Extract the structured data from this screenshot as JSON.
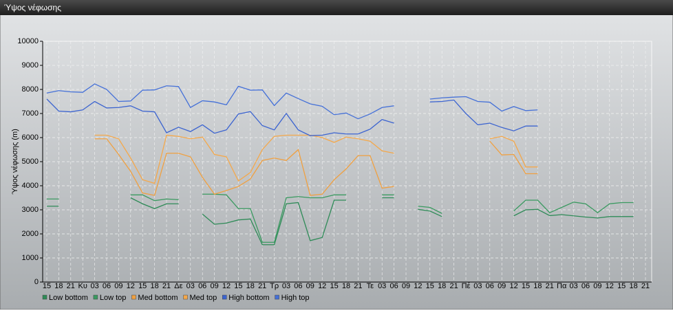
{
  "chart_data": {
    "type": "line",
    "title": "Ύψος νέφωσης",
    "ylabel": "Ύψος νέφωσης (m)",
    "categories": [
      "15",
      "18",
      "21",
      "Κυ",
      "03",
      "06",
      "09",
      "12",
      "15",
      "18",
      "21",
      "Δε",
      "03",
      "06",
      "09",
      "12",
      "15",
      "18",
      "21",
      "Τρ",
      "03",
      "06",
      "09",
      "12",
      "15",
      "18",
      "21",
      "Τε",
      "03",
      "06",
      "09",
      "12",
      "15",
      "18",
      "21",
      "Πέ",
      "03",
      "06",
      "09",
      "12",
      "15",
      "18",
      "21",
      "Πα",
      "03",
      "06",
      "09",
      "12",
      "15",
      "18",
      "21"
    ],
    "ylim": [
      0,
      10000
    ],
    "yticks": [
      0,
      1000,
      2000,
      3000,
      4000,
      5000,
      6000,
      7000,
      8000,
      9000,
      10000
    ],
    "grid": true,
    "series": [
      {
        "name": "Low bottom",
        "color": "#2e8b57",
        "values": [
          3150,
          3150,
          null,
          null,
          null,
          null,
          null,
          3500,
          3250,
          3050,
          3250,
          3250,
          null,
          2820,
          2400,
          2450,
          2580,
          2620,
          1550,
          1550,
          3250,
          3300,
          1720,
          1850,
          3400,
          3400,
          null,
          null,
          3500,
          3500,
          null,
          3020,
          2950,
          2720,
          null,
          null,
          null,
          null,
          null,
          2750,
          3000,
          3020,
          2760,
          2800,
          2750,
          2700,
          2660,
          2720,
          2720,
          2720,
          null
        ]
      },
      {
        "name": "Low top",
        "color": "#3a9a60",
        "values": [
          3450,
          3450,
          null,
          null,
          null,
          null,
          null,
          3620,
          3620,
          3380,
          3450,
          3420,
          null,
          3650,
          3650,
          3620,
          3050,
          3050,
          1650,
          1650,
          3500,
          3550,
          3500,
          3500,
          3620,
          3620,
          null,
          null,
          3620,
          3620,
          null,
          3150,
          3100,
          2850,
          null,
          null,
          null,
          null,
          null,
          2950,
          3400,
          3400,
          2880,
          3100,
          3320,
          3250,
          2880,
          3250,
          3300,
          3300,
          null
        ]
      },
      {
        "name": "Med bottom",
        "color": "#f0a040",
        "values": [
          null,
          null,
          null,
          null,
          5950,
          5950,
          5300,
          4600,
          3700,
          3600,
          5350,
          5350,
          5200,
          4350,
          3650,
          3800,
          3970,
          4280,
          5050,
          5150,
          5050,
          5500,
          3600,
          3650,
          4250,
          4700,
          5250,
          5250,
          3900,
          3970,
          null,
          null,
          null,
          null,
          null,
          null,
          null,
          5850,
          5280,
          5300,
          4500,
          4500,
          null,
          null,
          null,
          null,
          null,
          null,
          null,
          null,
          null
        ]
      },
      {
        "name": "Med top",
        "color": "#f5a84a",
        "values": [
          null,
          null,
          null,
          null,
          6100,
          6100,
          5950,
          5150,
          4250,
          4100,
          6100,
          6050,
          5950,
          6020,
          5300,
          5200,
          4200,
          4550,
          5500,
          6050,
          6100,
          6100,
          6100,
          6000,
          5800,
          6020,
          5950,
          5850,
          5450,
          5350,
          null,
          null,
          null,
          null,
          null,
          null,
          null,
          5950,
          6050,
          5850,
          4780,
          4780,
          null,
          null,
          null,
          null,
          null,
          null,
          null,
          null,
          null
        ]
      },
      {
        "name": "High bottom",
        "color": "#3c64d0",
        "values": [
          7600,
          7100,
          7070,
          7150,
          7500,
          7230,
          7250,
          7320,
          7100,
          7070,
          6200,
          6430,
          6250,
          6530,
          6180,
          6320,
          6980,
          7080,
          6500,
          6320,
          7000,
          6320,
          6080,
          6100,
          6200,
          6150,
          6150,
          6350,
          6750,
          6600,
          null,
          null,
          7480,
          7500,
          7560,
          7000,
          6530,
          6600,
          6420,
          6280,
          6480,
          6480,
          null,
          null,
          null,
          null,
          null,
          null,
          null,
          null,
          null
        ]
      },
      {
        "name": "High top",
        "color": "#4470d8",
        "values": [
          7850,
          7950,
          7900,
          7880,
          8230,
          8000,
          7500,
          7520,
          7970,
          7980,
          8150,
          8120,
          7250,
          7530,
          7480,
          7360,
          8130,
          7970,
          7980,
          7330,
          7850,
          7620,
          7400,
          7300,
          6950,
          7020,
          6780,
          6980,
          7250,
          7320,
          null,
          null,
          7600,
          7650,
          7680,
          7700,
          7500,
          7470,
          7100,
          7290,
          7120,
          7150,
          null,
          null,
          null,
          null,
          null,
          null,
          null,
          null,
          null
        ]
      }
    ]
  }
}
